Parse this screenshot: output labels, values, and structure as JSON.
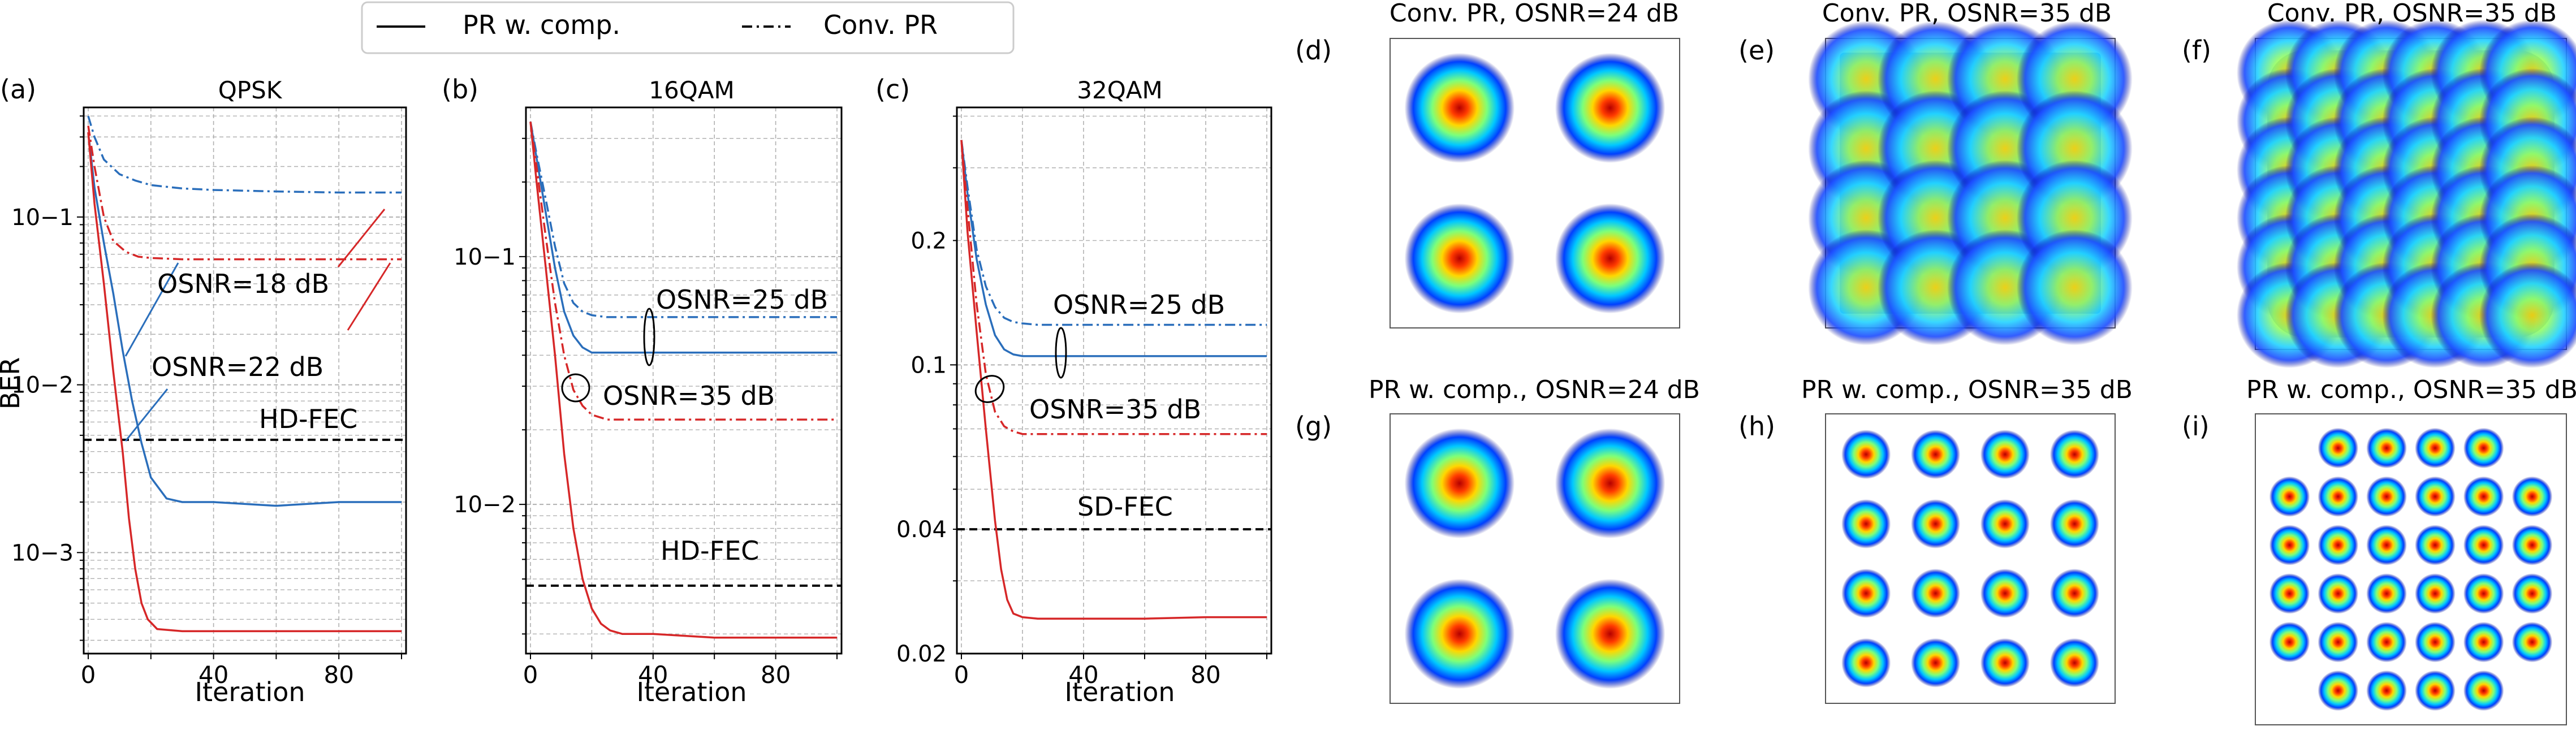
{
  "legend": {
    "solid_label": "PR w. comp.",
    "dashdot_label": "Conv. PR"
  },
  "colors": {
    "blue": "#2a6ebb",
    "red": "#d62728",
    "black": "#000000",
    "grid": "#b0b0b0"
  },
  "xlabel": "Iteration",
  "ylabel": "BER",
  "xticks": [
    "0",
    "40",
    "80"
  ],
  "panels": [
    {
      "letter": "(a)",
      "title": "QPSK",
      "scale": "log",
      "ylim": [
        0.00025,
        0.45
      ],
      "yticks": [
        0.001,
        0.01,
        0.1
      ],
      "ytick_labels": [
        "10−3",
        "10−2",
        "10−1"
      ],
      "fec": {
        "label": "HD-FEC",
        "value": 0.0047
      },
      "annotations": [
        "OSNR=18 dB",
        "OSNR=22 dB"
      ]
    },
    {
      "letter": "(b)",
      "title": "16QAM",
      "scale": "log",
      "ylim": [
        0.0025,
        0.4
      ],
      "yticks": [
        0.01,
        0.1
      ],
      "ytick_labels": [
        "10−2",
        "10−1"
      ],
      "fec": {
        "label": "HD-FEC",
        "value": 0.0047
      },
      "annotations": [
        "OSNR=25 dB",
        "OSNR=35 dB"
      ]
    },
    {
      "letter": "(c)",
      "title": "32QAM",
      "scale": "log",
      "ylim": [
        0.02,
        0.42
      ],
      "yticks": [
        0.02,
        0.04,
        0.1,
        0.2
      ],
      "ytick_labels": [
        "0.02",
        "0.04",
        "0.1",
        "0.2"
      ],
      "fec": {
        "label": "SD-FEC",
        "value": 0.04
      },
      "annotations": [
        "OSNR=25 dB",
        "OSNR=35 dB"
      ]
    }
  ],
  "constellations": [
    {
      "letter": "(d)",
      "title": "Conv. PR, OSNR=24 dB"
    },
    {
      "letter": "(e)",
      "title": "Conv. PR, OSNR=35 dB"
    },
    {
      "letter": "(f)",
      "title": "Conv. PR, OSNR=35 dB"
    },
    {
      "letter": "(g)",
      "title": "PR w. comp., OSNR=24 dB"
    },
    {
      "letter": "(h)",
      "title": "PR w. comp., OSNR=35 dB"
    },
    {
      "letter": "(i)",
      "title": "PR w. comp., OSNR=35 dB"
    }
  ],
  "chart_data": [
    {
      "type": "line",
      "title": "QPSK",
      "xlabel": "Iteration",
      "ylabel": "BER",
      "xlim": [
        0,
        100
      ],
      "ylim": [
        0.00025,
        0.45
      ],
      "yscale": "log",
      "grid": true,
      "series": [
        {
          "name": "PR w. comp.",
          "osnr": "OSNR=18 dB",
          "color": "blue",
          "style": "solid",
          "x": [
            0,
            2,
            5,
            8,
            11,
            14,
            17,
            20,
            25,
            30,
            40,
            60,
            80,
            100
          ],
          "y": [
            0.32,
            0.15,
            0.07,
            0.035,
            0.016,
            0.008,
            0.0045,
            0.0028,
            0.0021,
            0.002,
            0.002,
            0.0019,
            0.002,
            0.002
          ]
        },
        {
          "name": "Conv. PR",
          "osnr": "OSNR=18 dB",
          "color": "blue",
          "style": "dashdot",
          "x": [
            0,
            2,
            5,
            10,
            15,
            20,
            30,
            40,
            60,
            80,
            100
          ],
          "y": [
            0.4,
            0.3,
            0.22,
            0.18,
            0.165,
            0.155,
            0.148,
            0.145,
            0.142,
            0.14,
            0.14
          ]
        },
        {
          "name": "PR w. comp.",
          "osnr": "OSNR=22 dB",
          "color": "red",
          "style": "solid",
          "x": [
            0,
            2,
            5,
            8,
            11,
            13,
            15,
            17,
            19,
            22,
            30,
            40,
            60,
            80,
            100
          ],
          "y": [
            0.32,
            0.12,
            0.04,
            0.012,
            0.004,
            0.0016,
            0.0008,
            0.0005,
            0.0004,
            0.00035,
            0.00034,
            0.00034,
            0.00034,
            0.00034,
            0.00034
          ]
        },
        {
          "name": "Conv. PR",
          "osnr": "OSNR=22 dB",
          "color": "red",
          "style": "dashdot",
          "x": [
            0,
            2,
            5,
            8,
            12,
            16,
            20,
            30,
            40,
            60,
            80,
            100
          ],
          "y": [
            0.35,
            0.2,
            0.1,
            0.072,
            0.062,
            0.058,
            0.057,
            0.056,
            0.056,
            0.056,
            0.056,
            0.056
          ]
        }
      ],
      "hline": {
        "label": "HD-FEC",
        "value": 0.0047
      }
    },
    {
      "type": "line",
      "title": "16QAM",
      "xlabel": "Iteration",
      "ylabel": "",
      "xlim": [
        0,
        100
      ],
      "ylim": [
        0.0025,
        0.4
      ],
      "yscale": "log",
      "grid": true,
      "series": [
        {
          "name": "PR w. comp.",
          "osnr": "OSNR=25 dB",
          "color": "blue",
          "style": "solid",
          "x": [
            0,
            2,
            5,
            8,
            11,
            14,
            17,
            20,
            25,
            30,
            40,
            60,
            80,
            100
          ],
          "y": [
            0.35,
            0.25,
            0.15,
            0.09,
            0.06,
            0.048,
            0.043,
            0.041,
            0.041,
            0.041,
            0.041,
            0.041,
            0.041,
            0.041
          ]
        },
        {
          "name": "Conv. PR",
          "osnr": "OSNR=25 dB",
          "color": "blue",
          "style": "dashdot",
          "x": [
            0,
            2,
            5,
            8,
            11,
            14,
            17,
            20,
            25,
            30,
            40,
            60,
            80,
            100
          ],
          "y": [
            0.35,
            0.26,
            0.17,
            0.11,
            0.078,
            0.065,
            0.06,
            0.058,
            0.057,
            0.057,
            0.057,
            0.057,
            0.057,
            0.057
          ]
        },
        {
          "name": "PR w. comp.",
          "osnr": "OSNR=35 dB",
          "color": "red",
          "style": "solid",
          "x": [
            0,
            2,
            5,
            8,
            11,
            14,
            17,
            20,
            23,
            26,
            30,
            40,
            60,
            80,
            100
          ],
          "y": [
            0.35,
            0.2,
            0.09,
            0.04,
            0.016,
            0.008,
            0.005,
            0.0038,
            0.0033,
            0.0031,
            0.003,
            0.003,
            0.0029,
            0.0029,
            0.0029
          ]
        },
        {
          "name": "Conv. PR",
          "osnr": "OSNR=35 dB",
          "color": "red",
          "style": "dashdot",
          "x": [
            0,
            2,
            5,
            8,
            11,
            14,
            17,
            20,
            25,
            30,
            40,
            60,
            80,
            100
          ],
          "y": [
            0.35,
            0.23,
            0.12,
            0.065,
            0.04,
            0.029,
            0.025,
            0.023,
            0.022,
            0.022,
            0.022,
            0.022,
            0.022,
            0.022
          ]
        }
      ],
      "hline": {
        "label": "HD-FEC",
        "value": 0.0047
      }
    },
    {
      "type": "line",
      "title": "32QAM",
      "xlabel": "Iteration",
      "ylabel": "",
      "xlim": [
        0,
        100
      ],
      "ylim": [
        0.02,
        0.42
      ],
      "yscale": "log",
      "grid": true,
      "series": [
        {
          "name": "PR w. comp.",
          "osnr": "OSNR=25 dB",
          "color": "blue",
          "style": "solid",
          "x": [
            0,
            2,
            5,
            8,
            11,
            14,
            17,
            20,
            25,
            30,
            40,
            60,
            80,
            100
          ],
          "y": [
            0.35,
            0.26,
            0.18,
            0.14,
            0.118,
            0.109,
            0.106,
            0.105,
            0.105,
            0.105,
            0.105,
            0.105,
            0.105,
            0.105
          ]
        },
        {
          "name": "Conv. PR",
          "osnr": "OSNR=25 dB",
          "color": "blue",
          "style": "dashdot",
          "x": [
            0,
            2,
            5,
            8,
            11,
            14,
            17,
            20,
            25,
            30,
            40,
            60,
            80,
            100
          ],
          "y": [
            0.35,
            0.27,
            0.19,
            0.155,
            0.138,
            0.13,
            0.127,
            0.126,
            0.125,
            0.125,
            0.125,
            0.125,
            0.125,
            0.125
          ]
        },
        {
          "name": "PR w. comp.",
          "osnr": "OSNR=35 dB",
          "color": "red",
          "style": "solid",
          "x": [
            0,
            2,
            5,
            8,
            11,
            13,
            15,
            17,
            20,
            25,
            30,
            40,
            60,
            80,
            100
          ],
          "y": [
            0.35,
            0.21,
            0.12,
            0.07,
            0.042,
            0.032,
            0.027,
            0.025,
            0.0245,
            0.0243,
            0.0243,
            0.0243,
            0.0243,
            0.0245,
            0.0245
          ]
        },
        {
          "name": "Conv. PR",
          "osnr": "OSNR=35 dB",
          "color": "red",
          "style": "dashdot",
          "x": [
            0,
            2,
            5,
            8,
            11,
            14,
            17,
            20,
            25,
            30,
            40,
            60,
            80,
            100
          ],
          "y": [
            0.35,
            0.24,
            0.14,
            0.095,
            0.077,
            0.071,
            0.069,
            0.068,
            0.068,
            0.068,
            0.068,
            0.068,
            0.068,
            0.068
          ]
        }
      ],
      "hline": {
        "label": "SD-FEC",
        "value": 0.04
      }
    },
    {
      "type": "scatter",
      "title": "Conv. PR, OSNR=24 dB",
      "grid_points": 2,
      "description": "QPSK"
    },
    {
      "type": "scatter",
      "title": "Conv. PR, OSNR=35 dB",
      "grid_points": 4
    },
    {
      "type": "scatter",
      "title": "Conv. PR, OSNR=35 dB",
      "grid_points": 6
    },
    {
      "type": "scatter",
      "title": "PR w. comp., OSNR=24 dB",
      "grid_points": 2
    },
    {
      "type": "scatter",
      "title": "PR w. comp., OSNR=35 dB",
      "grid_points": 4
    },
    {
      "type": "scatter",
      "title": "PR w. comp., OSNR=35 dB",
      "grid_points": 6,
      "corners_removed": true
    }
  ]
}
